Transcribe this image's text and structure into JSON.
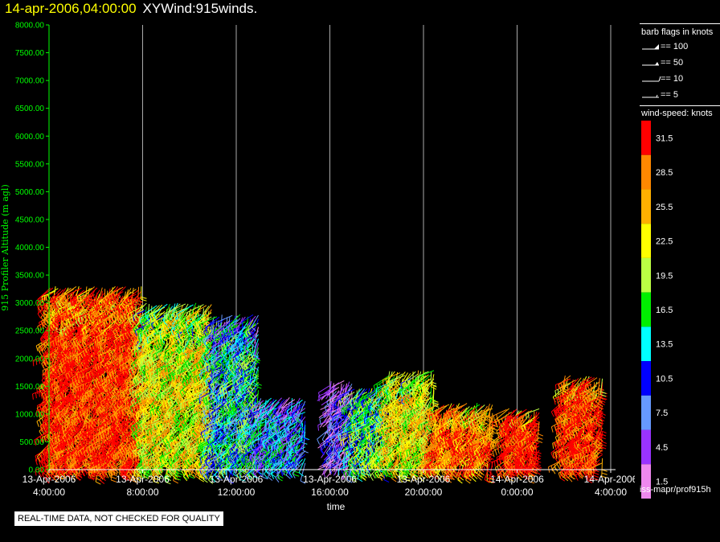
{
  "header": {
    "date": "14-apr-2006,04:00:00",
    "product": "XYWind:915winds."
  },
  "chart_data": {
    "type": "scatter",
    "subtype": "wind-barb time-height plot",
    "ylabel": "915 Profiler Altitude (m agl)",
    "xlabel": "time",
    "ylim": [
      0,
      8000
    ],
    "y_ticks": [
      "0.00",
      "500.00",
      "1000.00",
      "1500.00",
      "2000.00",
      "2500.00",
      "3000.00",
      "3500.00",
      "4000.00",
      "4500.00",
      "5000.00",
      "5500.00",
      "6000.00",
      "6500.00",
      "7000.00",
      "7500.00",
      "8000.00"
    ],
    "x_ticks": [
      {
        "date": "13-Apr-2006",
        "time": "4:00:00"
      },
      {
        "date": "13-Apr-2006",
        "time": "8:00:00"
      },
      {
        "date": "13-Apr-2006",
        "time": "12:00:00"
      },
      {
        "date": "13-Apr-2006",
        "time": "16:00:00"
      },
      {
        "date": "13-Apr-2006",
        "time": "20:00:00"
      },
      {
        "date": "14-Apr-2006",
        "time": "0:00:00"
      },
      {
        "date": "14-Apr-2006",
        "time": "4:00:00"
      }
    ],
    "xlim_hours": [
      0,
      24
    ],
    "grid": "vertical lines at each time tick",
    "profile_groups": [
      {
        "start_hour": 0.0,
        "end_hour": 4.0,
        "top_m": 3300,
        "dominant_speed": 31.5
      },
      {
        "start_hour": 4.0,
        "end_hour": 7.0,
        "top_m": 3000,
        "dominant_speed": 22.5
      },
      {
        "start_hour": 7.0,
        "end_hour": 9.0,
        "top_m": 2800,
        "dominant_speed": 13.5
      },
      {
        "start_hour": 9.0,
        "end_hour": 11.0,
        "top_m": 1300,
        "dominant_speed": 10.5
      },
      {
        "start_hour": 12.0,
        "end_hour": 13.0,
        "top_m": 1600,
        "dominant_speed": 4.5
      },
      {
        "start_hour": 13.0,
        "end_hour": 14.5,
        "top_m": 1500,
        "dominant_speed": 16.5
      },
      {
        "start_hour": 14.5,
        "end_hour": 16.5,
        "top_m": 1800,
        "dominant_speed": 22.5
      },
      {
        "start_hour": 16.5,
        "end_hour": 19.0,
        "top_m": 1200,
        "dominant_speed": 28.5
      },
      {
        "start_hour": 19.5,
        "end_hour": 21.0,
        "top_m": 1100,
        "dominant_speed": 31.5
      },
      {
        "start_hour": 22.0,
        "end_hour": 23.7,
        "top_m": 1700,
        "dominant_speed": 31.5
      }
    ],
    "legend": {
      "barb_title": "barb flags in knots",
      "barbs": [
        {
          "label": "== 100",
          "kind": "flag100"
        },
        {
          "label": "== 50",
          "kind": "flag50"
        },
        {
          "label": "== 10",
          "kind": "barb10"
        },
        {
          "label": "== 5",
          "kind": "barb5"
        }
      ],
      "speed_title": "wind-speed: knots",
      "speed_bins": [
        {
          "label": "31.5",
          "color": "#ff0000"
        },
        {
          "label": "28.5",
          "color": "#ff8800"
        },
        {
          "label": "25.5",
          "color": "#ffb000"
        },
        {
          "label": "22.5",
          "color": "#ffff00"
        },
        {
          "label": "19.5",
          "color": "#bbff44"
        },
        {
          "label": "16.5",
          "color": "#00ee00"
        },
        {
          "label": "13.5",
          "color": "#00ffff"
        },
        {
          "label": "10.5",
          "color": "#0000ff"
        },
        {
          "label": "7.5",
          "color": "#6699ff"
        },
        {
          "label": "4.5",
          "color": "#9933ff"
        },
        {
          "label": "1.5",
          "color": "#ee88ee"
        }
      ]
    }
  },
  "footer": {
    "notice": "REAL-TIME DATA, NOT CHECKED FOR QUALITY",
    "source": "iss-mapr/prof915h"
  },
  "colors": {
    "axis": "#00ff00",
    "title_date": "#ffff00",
    "grid": "#aaaaaa"
  }
}
